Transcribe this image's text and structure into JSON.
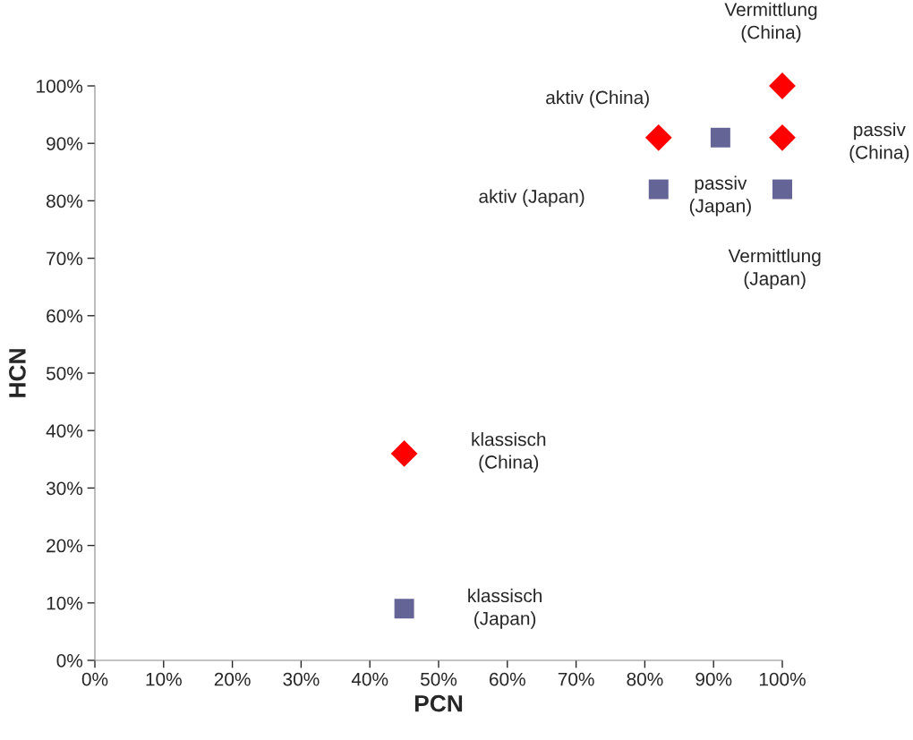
{
  "chart_data": {
    "type": "scatter",
    "xlabel": "PCN",
    "ylabel": "HCN",
    "series": [
      {
        "color": "#ff0000",
        "marker": "diamond",
        "x": [
          45,
          82,
          100,
          100
        ],
        "values": [
          36,
          91,
          100,
          91
        ]
      },
      {
        "color": "#646496",
        "marker": "square",
        "x": [
          45,
          82,
          91,
          100
        ],
        "values": [
          9,
          82,
          91,
          82
        ]
      }
    ],
    "annotations": [
      "klassisch\n(China)",
      "aktiv (China)",
      "Vermittlung\n(China)",
      "passiv\n(China)",
      "klassisch\n(Japan)",
      "aktiv (Japan)",
      "passiv\n(Japan)",
      "Vermittlung\n(Japan)"
    ],
    "xlim": [
      0,
      100
    ],
    "ylim": [
      0,
      100
    ],
    "xticks": [
      {
        "value": 0,
        "label": "0%"
      },
      {
        "value": 10,
        "label": "10%"
      },
      {
        "value": 20,
        "label": "20%"
      },
      {
        "value": 30,
        "label": "30%"
      },
      {
        "value": 40,
        "label": "40%"
      },
      {
        "value": 50,
        "label": "50%"
      },
      {
        "value": 60,
        "label": "60%"
      },
      {
        "value": 70,
        "label": "70%"
      },
      {
        "value": 80,
        "label": "80%"
      },
      {
        "value": 90,
        "label": "90%"
      },
      {
        "value": 100,
        "label": "100%"
      }
    ],
    "yticks": [
      {
        "value": 0,
        "label": "0%"
      },
      {
        "value": 10,
        "label": "10%"
      },
      {
        "value": 20,
        "label": "20%"
      },
      {
        "value": 30,
        "label": "30%"
      },
      {
        "value": 40,
        "label": "40%"
      },
      {
        "value": 50,
        "label": "50%"
      },
      {
        "value": 60,
        "label": "60%"
      },
      {
        "value": 70,
        "label": "70%"
      },
      {
        "value": 80,
        "label": "80%"
      },
      {
        "value": 90,
        "label": "90%"
      },
      {
        "value": 100,
        "label": "100%"
      }
    ],
    "grid": false,
    "legend": false
  }
}
